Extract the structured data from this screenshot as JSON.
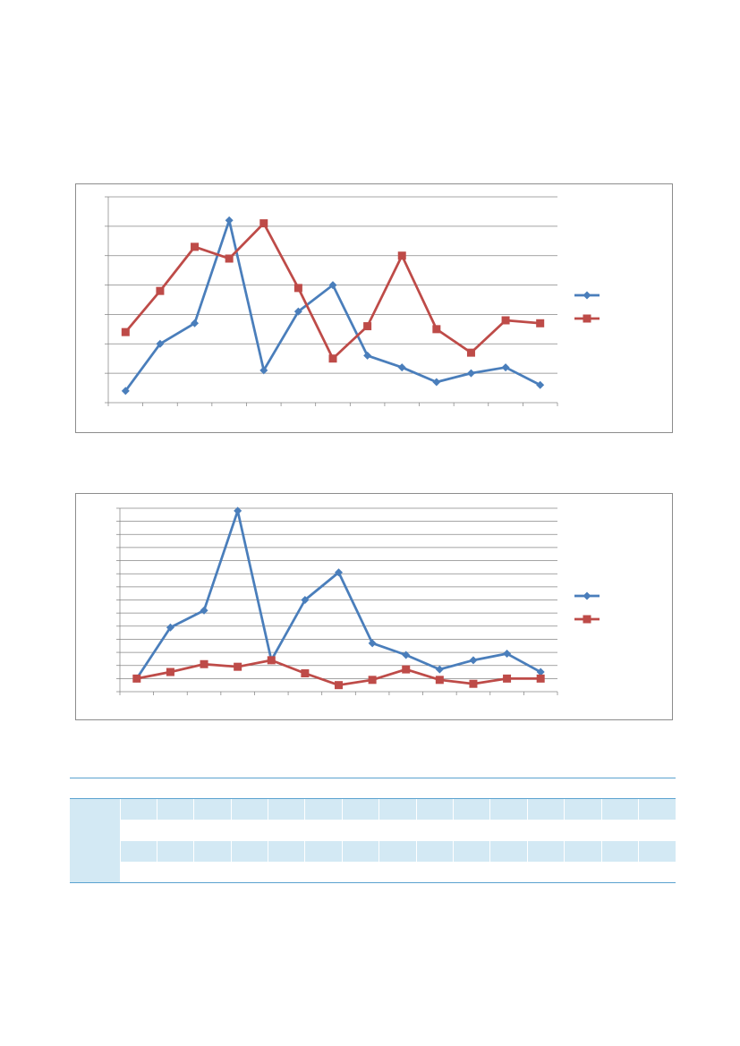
{
  "chart_data": [
    {
      "type": "line",
      "title": "",
      "xlabel": "",
      "ylabel": "",
      "categories": [
        "",
        "",
        "",
        "",
        "",
        "",
        "",
        "",
        "",
        "",
        "",
        "",
        ""
      ],
      "ylim": [
        0,
        7
      ],
      "grid": true,
      "legend_position": "right",
      "series": [
        {
          "values": [
            0.4,
            2.0,
            2.7,
            6.2,
            1.1,
            3.1,
            4.0,
            1.6,
            1.2,
            0.7,
            1.0,
            1.2,
            0.6
          ],
          "color": "#4a7ebb",
          "marker": "diamond"
        },
        {
          "values": [
            2.4,
            3.8,
            5.3,
            4.9,
            6.1,
            3.9,
            1.5,
            2.6,
            5.0,
            2.5,
            1.7,
            2.8,
            2.7
          ],
          "color": "#be4b48",
          "marker": "square"
        }
      ]
    },
    {
      "type": "line",
      "title": "",
      "xlabel": "",
      "ylabel": "",
      "categories": [
        "",
        "",
        "",
        "",
        "",
        "",
        "",
        "",
        "",
        "",
        "",
        "",
        ""
      ],
      "ylim": [
        0,
        14
      ],
      "grid": true,
      "legend_position": "right",
      "series": [
        {
          "values": [
            1.0,
            4.9,
            6.2,
            13.8,
            2.4,
            7.0,
            9.1,
            3.7,
            2.8,
            1.7,
            2.4,
            2.9,
            1.5
          ],
          "color": "#4a7ebb",
          "marker": "diamond"
        },
        {
          "values": [
            1.0,
            1.5,
            2.1,
            1.9,
            2.4,
            1.4,
            0.5,
            0.9,
            1.7,
            0.9,
            0.6,
            1.0,
            1.0
          ],
          "color": "#be4b48",
          "marker": "square"
        }
      ]
    }
  ],
  "table": {
    "column_count": 16,
    "rows": [
      {
        "style": "header",
        "cells": [
          "",
          "",
          "",
          "",
          "",
          "",
          "",
          "",
          "",
          "",
          "",
          "",
          "",
          "",
          "",
          ""
        ]
      },
      {
        "style": "shade",
        "cells": [
          "",
          "",
          "",
          "",
          "",
          "",
          "",
          "",
          "",
          "",
          "",
          "",
          "",
          "",
          "",
          ""
        ]
      },
      {
        "style": "plain",
        "cells": [
          "",
          "",
          "",
          "",
          "",
          "",
          "",
          "",
          "",
          "",
          "",
          "",
          "",
          "",
          "",
          ""
        ]
      },
      {
        "style": "shade",
        "cells": [
          "",
          "",
          "",
          "",
          "",
          "",
          "",
          "",
          "",
          "",
          "",
          "",
          "",
          "",
          "",
          ""
        ]
      },
      {
        "style": "plain",
        "cells": [
          "",
          "",
          "",
          "",
          "",
          "",
          "",
          "",
          "",
          "",
          "",
          "",
          "",
          "",
          "",
          ""
        ]
      }
    ]
  }
}
